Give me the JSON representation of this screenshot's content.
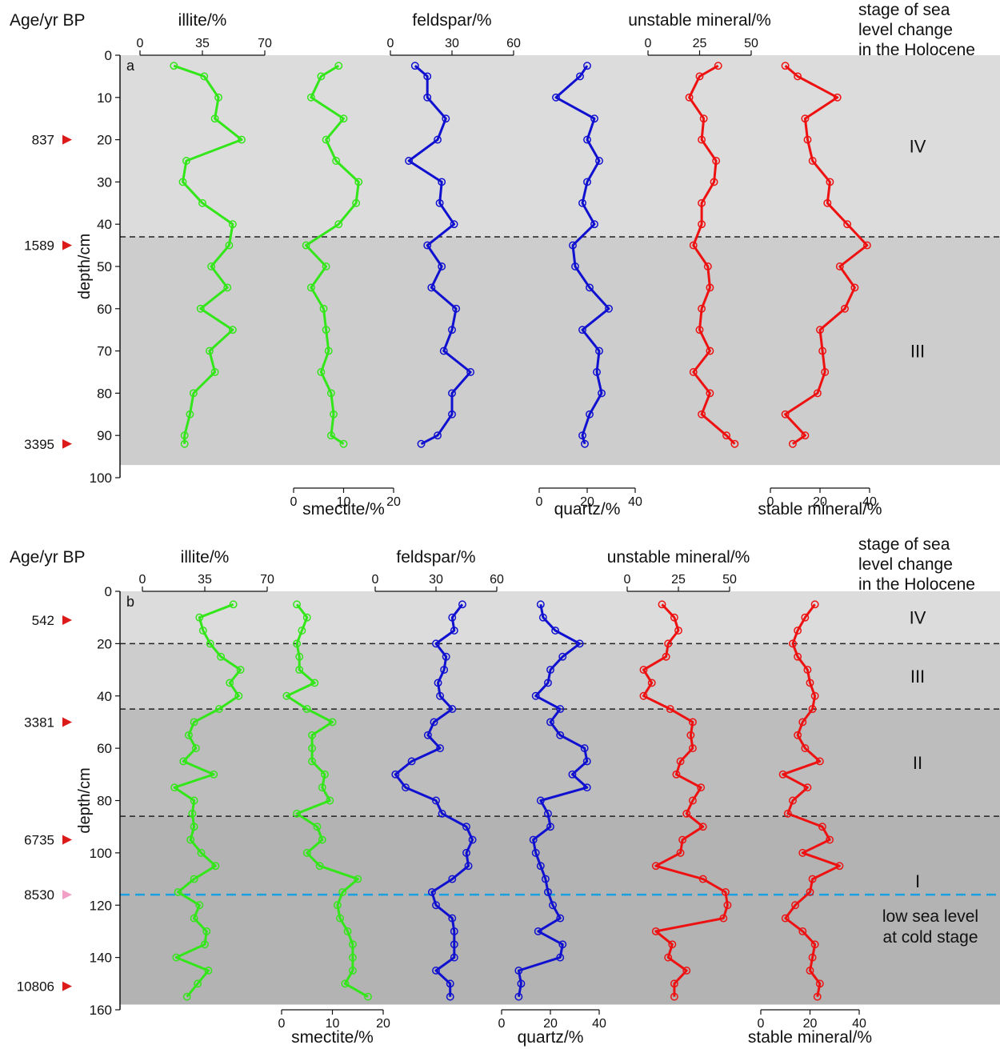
{
  "colors": {
    "illite": "#33e619",
    "smectite": "#33e619",
    "feldspar": "#1010d0",
    "quartz": "#1010d0",
    "unstable": "#ee1111",
    "stable": "#ee1111",
    "zone_light": "#dcdcdc",
    "zone_mid": "#cdcdcd",
    "zone_dark": "#bdbdbd",
    "zone_darkest": "#b3b3b3",
    "marker_red": "#dd1a1a",
    "marker_pink": "#f29fc6",
    "cold_line": "#1aa0e0"
  },
  "chart_data": [
    {
      "panel_label": "a",
      "type": "line",
      "age_header": "Age/yr BP",
      "stage_header": [
        "stage of sea",
        "level change",
        "in the Holocene"
      ],
      "ylabel": "depth/cm",
      "ylim": [
        0,
        100
      ],
      "yticks": [
        0,
        10,
        20,
        30,
        40,
        50,
        60,
        70,
        80,
        90,
        100
      ],
      "depths": [
        2.5,
        5,
        10,
        15,
        20,
        25,
        30,
        35,
        40,
        45,
        50,
        55,
        60,
        65,
        70,
        75,
        80,
        85,
        90,
        92
      ],
      "series": [
        {
          "key": "illite",
          "name": "illite/%",
          "axis_pos": "top",
          "ticks": [
            "0",
            "35",
            "70"
          ],
          "range": [
            0,
            70
          ],
          "values": [
            19,
            36,
            44,
            42,
            57,
            26,
            24,
            35,
            52,
            50,
            40,
            49,
            34,
            52,
            39,
            42,
            30,
            28,
            25,
            25
          ]
        },
        {
          "key": "smectite",
          "name": "smectite/%",
          "axis_pos": "bottom",
          "ticks": [
            "0",
            "10",
            "20"
          ],
          "range": [
            0,
            20
          ],
          "values": [
            9,
            5.5,
            3.5,
            10,
            6.5,
            8.5,
            13,
            12.5,
            9,
            2.5,
            6.5,
            3.5,
            6,
            6.5,
            7,
            5.5,
            7.5,
            8,
            7.5,
            10
          ]
        },
        {
          "key": "feldspar",
          "name": "feldspar/%",
          "axis_pos": "top",
          "ticks": [
            "0",
            "30",
            "60"
          ],
          "range": [
            0,
            60
          ],
          "values": [
            12,
            18,
            18,
            27,
            23,
            9,
            25,
            24,
            31,
            18,
            25,
            20,
            32,
            30,
            26,
            39,
            30,
            30,
            23,
            15
          ]
        },
        {
          "key": "quartz",
          "name": "quartz/%",
          "axis_pos": "bottom",
          "ticks": [
            "0",
            "20",
            "40"
          ],
          "range": [
            0,
            40
          ],
          "values": [
            20,
            17,
            7,
            23,
            20,
            25,
            20,
            18,
            23,
            14,
            15,
            21,
            29,
            18,
            25,
            24,
            26,
            21,
            18,
            19
          ]
        },
        {
          "key": "unstable",
          "name": "unstable mineral/%",
          "axis_pos": "top",
          "ticks": [
            "0",
            "25",
            "50"
          ],
          "range": [
            0,
            50
          ],
          "values": [
            34,
            25,
            20,
            27,
            26,
            33,
            32,
            26,
            26,
            22,
            29,
            30,
            26,
            25,
            30,
            22,
            30,
            26,
            38,
            42
          ]
        },
        {
          "key": "stable",
          "name": "stable mineral/%",
          "axis_pos": "bottom",
          "ticks": [
            "0",
            "20",
            "40"
          ],
          "range": [
            0,
            40
          ],
          "values": [
            6,
            11,
            27,
            14,
            15,
            17,
            24,
            23,
            31,
            39,
            28,
            34,
            30,
            20,
            21,
            22,
            19,
            6,
            14,
            9
          ]
        }
      ],
      "zones": [
        {
          "from": 0,
          "to": 43,
          "shade": "light",
          "label": "IV"
        },
        {
          "from": 43,
          "to": 97,
          "shade": "mid",
          "label": "III"
        }
      ],
      "dashed_lines": [
        {
          "depth": 43,
          "style": "black"
        }
      ],
      "ages": [
        {
          "label": "837",
          "depth": 20,
          "marker": "red"
        },
        {
          "label": "1589",
          "depth": 45,
          "marker": "red"
        },
        {
          "label": "3395",
          "depth": 92,
          "marker": "red"
        }
      ],
      "annotations": []
    },
    {
      "panel_label": "b",
      "type": "line",
      "age_header": "Age/yr BP",
      "stage_header": [
        "stage of sea",
        "level change",
        "in the Holocene"
      ],
      "ylabel": "depth/cm",
      "ylim": [
        0,
        160
      ],
      "yticks": [
        0,
        20,
        40,
        60,
        80,
        100,
        120,
        140,
        160
      ],
      "depths": [
        5,
        10,
        15,
        20,
        25,
        30,
        35,
        40,
        45,
        50,
        55,
        60,
        65,
        70,
        75,
        80,
        85,
        90,
        95,
        100,
        105,
        110,
        115,
        120,
        125,
        130,
        135,
        140,
        145,
        150,
        155
      ],
      "series": [
        {
          "key": "illite",
          "name": "illite/%",
          "axis_pos": "top",
          "ticks": [
            "0",
            "35",
            "70"
          ],
          "range": [
            0,
            70
          ],
          "values": [
            51,
            32,
            34,
            38,
            44,
            55,
            49,
            54,
            43,
            29,
            26,
            30,
            23,
            40,
            18,
            29,
            28,
            29,
            27,
            33,
            41,
            29,
            20,
            32,
            29,
            36,
            35,
            19,
            37,
            31,
            25
          ]
        },
        {
          "key": "smectite",
          "name": "smectite/%",
          "axis_pos": "bottom",
          "ticks": [
            "0",
            "10",
            "20"
          ],
          "range": [
            0,
            20
          ],
          "values": [
            3,
            5,
            4,
            3,
            3.5,
            3.5,
            6.5,
            1,
            5,
            10,
            6,
            6,
            6,
            8.5,
            8,
            9.5,
            3,
            7,
            8,
            5,
            7.5,
            15,
            12,
            11,
            11.5,
            13,
            14,
            14,
            14,
            12.5,
            17
          ]
        },
        {
          "key": "feldspar",
          "name": "feldspar/%",
          "axis_pos": "top",
          "ticks": [
            "0",
            "30",
            "60"
          ],
          "range": [
            0,
            60
          ],
          "values": [
            43,
            38,
            39,
            30,
            35,
            34,
            31,
            32,
            38,
            29,
            26,
            32,
            18,
            10,
            15,
            30,
            33,
            45,
            48,
            45,
            46,
            38,
            28,
            30,
            38,
            39,
            39,
            39,
            30,
            37,
            37
          ]
        },
        {
          "key": "quartz",
          "name": "quartz/%",
          "axis_pos": "bottom",
          "ticks": [
            "0",
            "20",
            "40"
          ],
          "range": [
            0,
            40
          ],
          "values": [
            16,
            17,
            22,
            32,
            25,
            20,
            19,
            14,
            24,
            20,
            24,
            34,
            35,
            29,
            35,
            16,
            19,
            20,
            13,
            14,
            16,
            18,
            19,
            21,
            24,
            15,
            25,
            24,
            7,
            8,
            7
          ]
        },
        {
          "key": "unstable",
          "name": "unstable mineral/%",
          "axis_pos": "top",
          "ticks": [
            "0",
            "25",
            "50"
          ],
          "range": [
            0,
            50
          ],
          "values": [
            17,
            23,
            25,
            20,
            19,
            8,
            12,
            8,
            21,
            32,
            31,
            32,
            26,
            24,
            36,
            32,
            29,
            37,
            27,
            26,
            14,
            37,
            48,
            49,
            47,
            14,
            22,
            20,
            29,
            23,
            23
          ]
        },
        {
          "key": "stable",
          "name": "stable mineral/%",
          "axis_pos": "bottom",
          "ticks": [
            "0",
            "20",
            "40"
          ],
          "range": [
            0,
            40
          ],
          "values": [
            22,
            18,
            15,
            13,
            15,
            19,
            20,
            22,
            21,
            17,
            15,
            18,
            24,
            9,
            19,
            13,
            11,
            25,
            28,
            17,
            32,
            21,
            20,
            14,
            10,
            17,
            22,
            21,
            20,
            24,
            23
          ]
        }
      ],
      "zones": [
        {
          "from": 0,
          "to": 20,
          "shade": "light",
          "label": "IV"
        },
        {
          "from": 20,
          "to": 45,
          "shade": "mid",
          "label": "III"
        },
        {
          "from": 45,
          "to": 86,
          "shade": "dark",
          "label": "II"
        },
        {
          "from": 86,
          "to": 158,
          "shade": "darkest",
          "label": "I"
        }
      ],
      "dashed_lines": [
        {
          "depth": 20,
          "style": "black"
        },
        {
          "depth": 45,
          "style": "black"
        },
        {
          "depth": 86,
          "style": "black"
        },
        {
          "depth": 116,
          "style": "cold"
        }
      ],
      "ages": [
        {
          "label": "542",
          "depth": 11,
          "marker": "red"
        },
        {
          "label": "3381",
          "depth": 50,
          "marker": "red"
        },
        {
          "label": "6735",
          "depth": 95,
          "marker": "red"
        },
        {
          "label": "8530",
          "depth": 116,
          "marker": "pink"
        },
        {
          "label": "10806",
          "depth": 151,
          "marker": "red"
        }
      ],
      "annotations": [
        "low sea level",
        "at cold stage"
      ]
    }
  ]
}
